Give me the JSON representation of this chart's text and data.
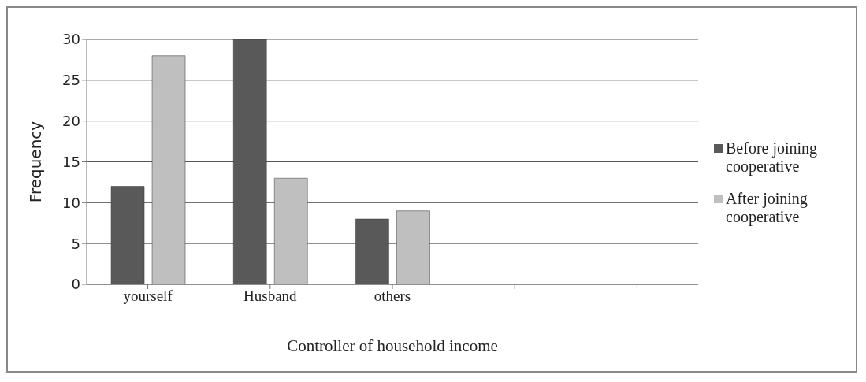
{
  "chart_data": {
    "type": "bar",
    "xlabel": "Controller of household income",
    "ylabel": "Frequency",
    "categories": [
      "yourself",
      "Husband",
      "others",
      null,
      null
    ],
    "series": [
      {
        "name": "Before joining cooperative",
        "color": "#595959",
        "values": [
          12,
          30,
          8,
          null,
          null
        ]
      },
      {
        "name": "After joining cooperative",
        "color": "#bfbfbf",
        "values": [
          28,
          13,
          9,
          null,
          null
        ]
      }
    ],
    "ylim": [
      0,
      30
    ],
    "yticks": [
      0,
      5,
      10,
      15,
      20,
      25,
      30
    ],
    "grid": "y",
    "legend": "right"
  }
}
